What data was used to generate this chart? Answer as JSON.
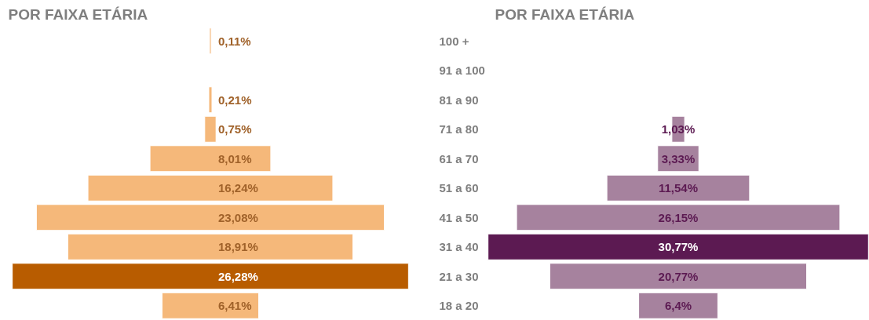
{
  "chart_data": [
    {
      "type": "other",
      "title": "POR FAIXA ETÁRIA",
      "categories": [
        "100 +",
        "91 a 100",
        "81 a 90",
        "71 a 80",
        "61 a 70",
        "51 a 60",
        "41 a 50",
        "31 a 40",
        "21 a 30",
        "18 a 20"
      ],
      "values": [
        0.11,
        null,
        0.21,
        0.75,
        8.01,
        16.24,
        23.08,
        18.91,
        26.28,
        6.41
      ],
      "value_labels": [
        "0,11%",
        null,
        "0,21%",
        "0,75%",
        "8,01%",
        "16,24%",
        "23,08%",
        "18,91%",
        "26,28%",
        "6,41%"
      ],
      "colors": [
        "#f5b87a",
        null,
        "#f5b87a",
        "#f5b87a",
        "#f5b87a",
        "#f5b87a",
        "#f5b87a",
        "#f5b87a",
        "#b85c00",
        "#f5b87a"
      ]
    },
    {
      "type": "other",
      "title": "POR FAIXA ETÁRIA",
      "categories": [
        null,
        null,
        null,
        null,
        null,
        null,
        null,
        null,
        null,
        null
      ],
      "values": [
        null,
        null,
        null,
        1.03,
        3.33,
        11.54,
        26.15,
        30.77,
        20.77,
        6.4
      ],
      "value_labels": [
        null,
        null,
        null,
        "1,03%",
        "3,33%",
        "11,54%",
        "26,15%",
        "30,77%",
        "20,77%",
        "6,4%"
      ],
      "colors": [
        null,
        null,
        null,
        "#a6829e",
        "#a6829e",
        "#a6829e",
        "#a6829e",
        "#5c1a52",
        "#a6829e",
        "#a6829e"
      ]
    }
  ]
}
